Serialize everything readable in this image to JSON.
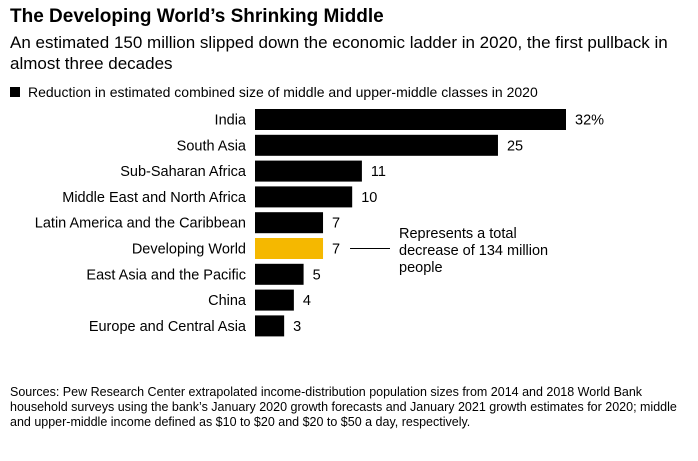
{
  "title": "The Developing World’s Shrinking Middle",
  "subtitle": "An estimated 150 million slipped down the economic ladder in 2020, the first pullback in almost three decades",
  "legend": "Reduction in estimated combined size of middle and upper-middle classes in 2020",
  "annotation": "Represents a total decrease of 134 million people",
  "sources": "Sources: Pew Research Center extrapolated income-distribution population sizes from 2014 and 2018 World Bank household surveys using the bank’s January 2020 growth forecasts and January 2021 growth estimates for 2020; middle and upper-middle income defined as $10 to $20 and $20 to $50 a day, respectively.",
  "colors": {
    "bar": "#000000",
    "highlight": "#f5b800"
  },
  "chart_data": {
    "type": "bar",
    "orientation": "horizontal",
    "categories": [
      "India",
      "South Asia",
      "Sub-Saharan Africa",
      "Middle East and North Africa",
      "Latin America and the Caribbean",
      "Developing World",
      "East Asia and the Pacific",
      "China",
      "Europe and Central Asia"
    ],
    "values": [
      32,
      25,
      11,
      10,
      7,
      7,
      5,
      4,
      3
    ],
    "value_labels": [
      "32%",
      "25",
      "11",
      "10",
      "7",
      "7",
      "5",
      "4",
      "3"
    ],
    "highlight_category": "Developing World",
    "xlim": [
      0,
      32
    ],
    "grid": false,
    "legend_position": "top-left"
  }
}
